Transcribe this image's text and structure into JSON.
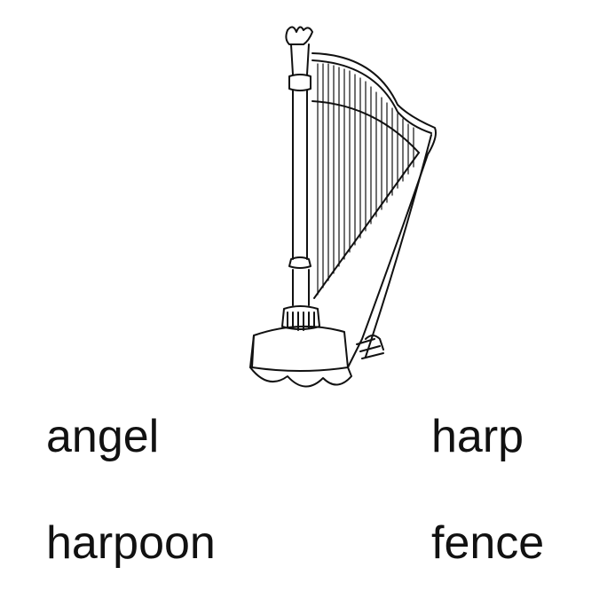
{
  "illustration": {
    "icon": "harp-icon"
  },
  "words": [
    {
      "label": "angel"
    },
    {
      "label": "harp"
    },
    {
      "label": "harpoon"
    },
    {
      "label": "fence"
    }
  ],
  "colors": {
    "ink": "#111111",
    "background": "#ffffff"
  }
}
